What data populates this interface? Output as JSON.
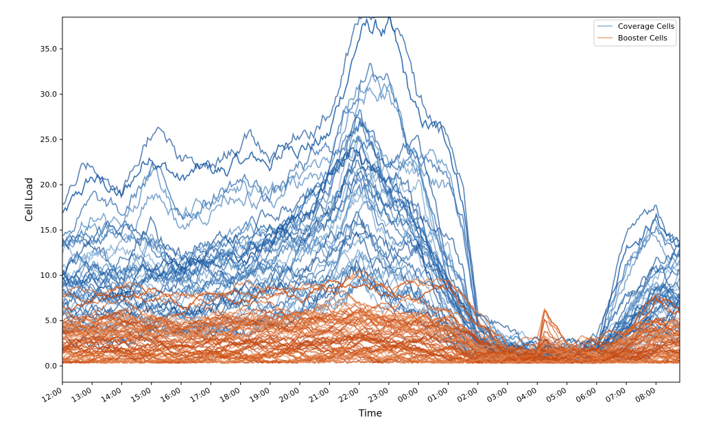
{
  "chart_data": {
    "type": "line",
    "title": "",
    "xlabel": "Time",
    "ylabel": "Cell Load",
    "ylim": [
      -1.8,
      38.5
    ],
    "xlim_hours": [
      12.0,
      32.8
    ],
    "y_ticks": [
      "0.0",
      "5.0",
      "10.0",
      "15.0",
      "20.0",
      "25.0",
      "30.0",
      "35.0"
    ],
    "x_ticks": [
      "12:00",
      "13:00",
      "14:00",
      "15:00",
      "16:00",
      "17:00",
      "18:00",
      "19:00",
      "20:00",
      "21:00",
      "22:00",
      "23:00",
      "00:00",
      "01:00",
      "02:00",
      "03:00",
      "04:00",
      "05:00",
      "06:00",
      "07:00",
      "08:00"
    ],
    "grid": false,
    "legend_position": "top-right",
    "series_groups": [
      {
        "name": "Coverage Cells",
        "color": "#1f5fa8",
        "legend_color": "#8db4d9",
        "line_count": 40,
        "note_values": "approximate envelopes per representative line",
        "representative_series": [
          {
            "x": [
              "12:00",
              "13:00",
              "14:00",
              "15:00",
              "16:00",
              "17:00",
              "18:00",
              "19:00",
              "20:00",
              "21:00",
              "22:00",
              "23:00",
              "00:00",
              "01:00",
              "01:30",
              "02:00",
              "03:00",
              "04:00",
              "05:00",
              "06:00",
              "07:00",
              "08:00",
              "08:45"
            ],
            "y": [
              17,
              20,
              18,
              25,
              20,
              21,
              23,
              22,
              25,
              26,
              36,
              37,
              27,
              24,
              18,
              5,
              2,
              1.5,
              1.5,
              3,
              13,
              17,
              14
            ]
          },
          {
            "x": [
              "12:00",
              "14:00",
              "16:00",
              "18:00",
              "20:00",
              "21:00",
              "22:00",
              "23:00",
              "00:00",
              "01:00",
              "02:00",
              "04:00",
              "06:00",
              "08:00",
              "08:45"
            ],
            "y": [
              13,
              15,
              12,
              14,
              17,
              19,
              27,
              21,
              23,
              10,
              5,
              1.5,
              2,
              10,
              13
            ]
          },
          {
            "x": [
              "12:00",
              "14:00",
              "16:00",
              "18:00",
              "20:00",
              "22:00",
              "23:00",
              "00:00",
              "01:00",
              "02:00",
              "04:00",
              "06:00",
              "08:00",
              "08:45"
            ],
            "y": [
              10,
              9,
              11,
              12,
              16,
              25,
              20,
              15,
              9,
              3,
              1,
              1.5,
              8,
              8
            ]
          }
        ]
      },
      {
        "name": "Booster Cells",
        "color": "#cf4f0f",
        "legend_color": "#f0a77a",
        "line_count": 60,
        "note_values": "approximate envelopes per representative line",
        "representative_series": [
          {
            "x": [
              "12:00",
              "14:00",
              "16:00",
              "18:00",
              "20:00",
              "22:00",
              "23:00",
              "00:00",
              "01:00",
              "02:00",
              "03:00",
              "04:00",
              "04:15",
              "05:00",
              "06:00",
              "07:00",
              "08:00",
              "08:45"
            ],
            "y": [
              7,
              8,
              7,
              8,
              8,
              9,
              8,
              8,
              9,
              5,
              2,
              2,
              5.5,
              2,
              2.5,
              3.5,
              7,
              6
            ]
          },
          {
            "x": [
              "12:00",
              "14:00",
              "16:00",
              "18:00",
              "20:00",
              "22:00",
              "00:00",
              "02:00",
              "04:00",
              "06:00",
              "08:00",
              "08:45"
            ],
            "y": [
              4,
              5,
              4,
              5,
              5,
              6,
              5,
              2,
              1,
              1.5,
              4,
              4
            ]
          },
          {
            "x": [
              "12:00",
              "14:00",
              "16:00",
              "18:00",
              "20:00",
              "22:00",
              "00:00",
              "02:00",
              "04:00",
              "06:00",
              "08:00",
              "08:45"
            ],
            "y": [
              1,
              1.5,
              1,
              1.5,
              1.5,
              2,
              1.5,
              0.8,
              0.7,
              0.8,
              1.2,
              1
            ]
          }
        ]
      }
    ]
  }
}
